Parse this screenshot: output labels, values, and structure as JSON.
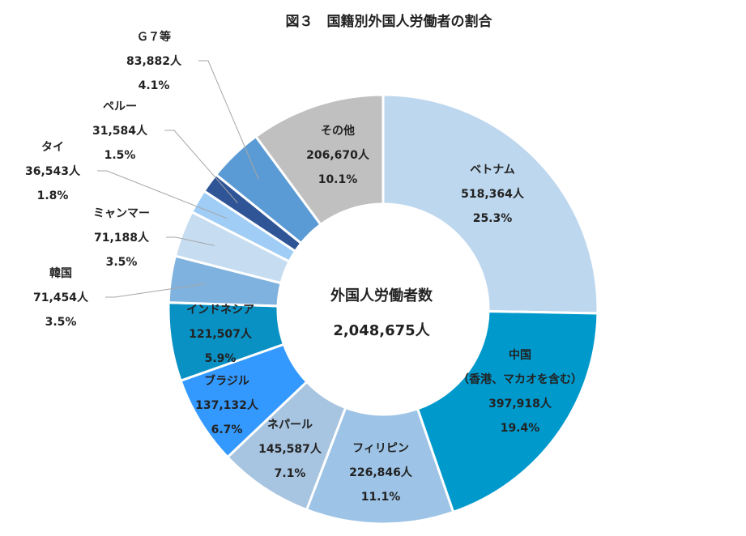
{
  "chart_data": {
    "type": "pie",
    "style": "donut",
    "title": "図３　国籍別外国人労働者の割合",
    "center_label": "外国人労働者数",
    "center_value": "2,048,675人",
    "colors": {
      "vietnam": "#bdd7ee",
      "china": "#0099cc",
      "philippines": "#9dc3e6",
      "nepal": "#a7c4e0",
      "brazil": "#3399ff",
      "indonesia": "#0a91c4",
      "korea": "#7fb2de",
      "myanmar": "#c6dcf1",
      "thailand": "#9fcdf5",
      "peru": "#2f5597",
      "g7": "#5b9bd5",
      "other": "#c0c0c0"
    },
    "slices": [
      {
        "key": "vietnam",
        "name": "ベトナム",
        "count": "518,364人",
        "percent_label": "25.3%",
        "value": 25.3
      },
      {
        "key": "china",
        "name": "中国",
        "name2": "（香港、マカオを含む）",
        "count": "397,918人",
        "percent_label": "19.4%",
        "value": 19.4
      },
      {
        "key": "philippines",
        "name": "フィリピン",
        "count": "226,846人",
        "percent_label": "11.1%",
        "value": 11.1
      },
      {
        "key": "nepal",
        "name": "ネパール",
        "count": "145,587人",
        "percent_label": "7.1%",
        "value": 7.1
      },
      {
        "key": "brazil",
        "name": "ブラジル",
        "count": "137,132人",
        "percent_label": "6.7%",
        "value": 6.7
      },
      {
        "key": "indonesia",
        "name": "インドネシア",
        "count": "121,507人",
        "percent_label": "5.9%",
        "value": 5.9
      },
      {
        "key": "korea",
        "name": "韓国",
        "count": "71,454人",
        "percent_label": "3.5%",
        "value": 3.5
      },
      {
        "key": "myanmar",
        "name": "ミャンマー",
        "count": "71,188人",
        "percent_label": "3.5%",
        "value": 3.5
      },
      {
        "key": "thailand",
        "name": "タイ",
        "count": "36,543人",
        "percent_label": "1.8%",
        "value": 1.8
      },
      {
        "key": "peru",
        "name": "ペルー",
        "count": "31,584人",
        "percent_label": "1.5%",
        "value": 1.5
      },
      {
        "key": "g7",
        "name": "Ｇ７等",
        "count": "83,882人",
        "percent_label": "4.1%",
        "value": 4.1
      },
      {
        "key": "other",
        "name": "その他",
        "count": "206,670人",
        "percent_label": "10.1%",
        "value": 10.1
      }
    ]
  }
}
